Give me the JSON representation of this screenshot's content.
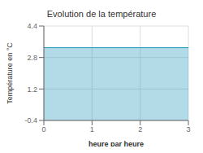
{
  "chart_data": {
    "type": "area",
    "title": "Evolution de la température",
    "xlabel": "heure par heure",
    "ylabel": "Température en °C",
    "x": [
      0,
      3
    ],
    "values": [
      3.3,
      3.3
    ],
    "color": "#2299bb",
    "xlim": [
      0,
      3
    ],
    "ylim": [
      -0.4,
      4.4
    ],
    "xticks": [
      0,
      1,
      2,
      3
    ],
    "yticks": [
      -0.4,
      1.2,
      2.8,
      4.4
    ],
    "grid": true
  }
}
